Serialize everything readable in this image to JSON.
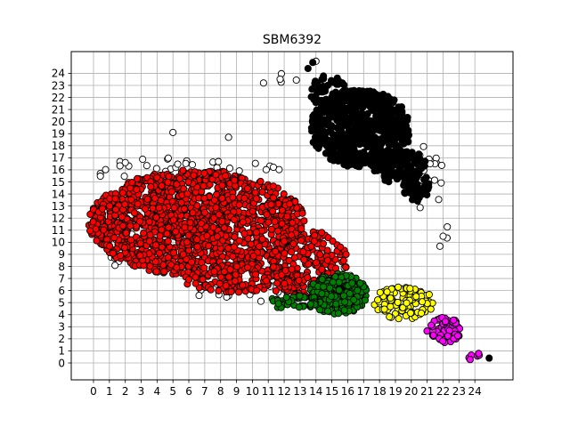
{
  "chart_data": {
    "type": "scatter",
    "title": "SBM6392",
    "xlabel": "",
    "ylabel": "",
    "xlim": [
      -1.4,
      26.4
    ],
    "ylim": [
      -1.4,
      25.8
    ],
    "xticks": [
      0,
      1,
      2,
      3,
      4,
      5,
      6,
      7,
      8,
      9,
      10,
      11,
      12,
      13,
      14,
      15,
      16,
      17,
      18,
      19,
      20,
      21,
      22,
      23,
      24
    ],
    "yticks": [
      0,
      1,
      2,
      3,
      4,
      5,
      6,
      7,
      8,
      9,
      10,
      11,
      12,
      13,
      14,
      15,
      16,
      17,
      18,
      19,
      20,
      21,
      22,
      23,
      24
    ],
    "grid": true,
    "legend": "none",
    "series": [
      {
        "color": "#ffffff",
        "seed": 11,
        "regions": [
          {
            "cx": 6,
            "cy": 15.8,
            "rx": 7,
            "ry": 1.2,
            "n": 45
          },
          {
            "cx": 10,
            "cy": 6.2,
            "rx": 4,
            "ry": 1.3,
            "n": 25
          },
          {
            "cx": 1.5,
            "cy": 11,
            "rx": 1,
            "ry": 3,
            "n": 14
          },
          {
            "cx": 21,
            "cy": 15,
            "rx": 1.2,
            "ry": 3,
            "n": 16
          },
          {
            "cx": 11.5,
            "cy": 23.5,
            "rx": 1.5,
            "ry": 0.6,
            "n": 4
          },
          {
            "cx": 16,
            "cy": 8.2,
            "rx": 2,
            "ry": 1,
            "n": 7
          },
          {
            "cx": 22,
            "cy": 11,
            "rx": 0.6,
            "ry": 1.5,
            "n": 3
          }
        ],
        "points": [
          [
            5,
            19.1
          ],
          [
            8.5,
            18.7
          ],
          [
            22,
            10.5
          ],
          [
            14,
            25
          ],
          [
            10.7,
            23.2
          ]
        ]
      },
      {
        "color": "#ff0000",
        "seed": 23,
        "regions": [
          {
            "cx": 6.5,
            "cy": 11.6,
            "rx": 6.8,
            "ry": 4.4,
            "n": 1400
          },
          {
            "cx": 13.5,
            "cy": 8.2,
            "rx": 2.5,
            "ry": 2.8,
            "n": 180
          },
          {
            "cx": 9.5,
            "cy": 7,
            "rx": 4,
            "ry": 1.2,
            "n": 160
          }
        ],
        "points": []
      },
      {
        "color": "#000000",
        "seed": 37,
        "regions": [
          {
            "cx": 16.8,
            "cy": 19.4,
            "rx": 3.2,
            "ry": 3.2,
            "n": 650
          },
          {
            "cx": 19.3,
            "cy": 16.3,
            "rx": 1.7,
            "ry": 1.5,
            "n": 120
          },
          {
            "cx": 14.8,
            "cy": 22.5,
            "rx": 1.3,
            "ry": 1.4,
            "n": 60
          },
          {
            "cx": 20.3,
            "cy": 14.6,
            "rx": 0.9,
            "ry": 1.2,
            "n": 40
          }
        ],
        "points": [
          [
            13.8,
            24.9
          ],
          [
            13.5,
            24.4
          ],
          [
            24.9,
            0.4
          ]
        ]
      },
      {
        "color": "#008000",
        "seed": 41,
        "regions": [
          {
            "cx": 15.4,
            "cy": 5.7,
            "rx": 1.8,
            "ry": 1.7,
            "n": 240
          },
          {
            "cx": 12.5,
            "cy": 5,
            "rx": 1.5,
            "ry": 0.6,
            "n": 40
          }
        ],
        "points": []
      },
      {
        "color": "#ffff00",
        "seed": 53,
        "regions": [
          {
            "cx": 19.5,
            "cy": 5,
            "rx": 1.9,
            "ry": 1.4,
            "n": 110
          }
        ],
        "points": []
      },
      {
        "color": "#ff00ff",
        "seed": 67,
        "regions": [
          {
            "cx": 22,
            "cy": 2.7,
            "rx": 1.2,
            "ry": 1.1,
            "n": 60
          },
          {
            "cx": 24,
            "cy": 0.5,
            "rx": 0.5,
            "ry": 0.35,
            "n": 6
          }
        ],
        "points": []
      }
    ]
  }
}
